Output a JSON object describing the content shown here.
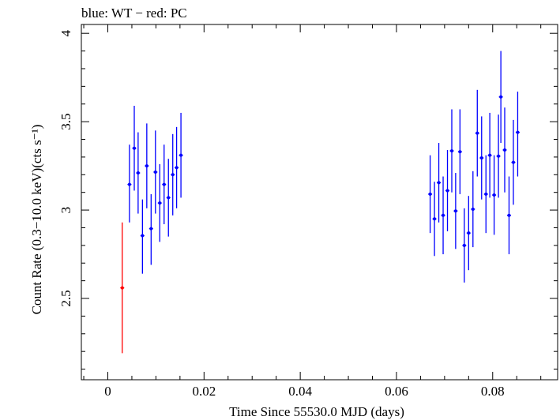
{
  "chart_data": {
    "type": "scatter",
    "title": "blue: WT − red: PC",
    "xlabel": "Time Since 55530.0 MJD (days)",
    "ylabel": "Count Rate (0.3−10.0 keV)(cts s⁻¹)",
    "xlim": [
      -0.0055,
      0.0935
    ],
    "ylim": [
      2.04,
      4.05
    ],
    "xticks": [
      0,
      0.02,
      0.04,
      0.06,
      0.08
    ],
    "xtick_labels": [
      "0",
      "0.02",
      "0.04",
      "0.06",
      "0.08"
    ],
    "yticks": [
      2.5,
      3,
      3.5,
      4
    ],
    "ytick_labels": [
      "2.5",
      "3",
      "3.5",
      "4"
    ],
    "series": [
      {
        "name": "WT",
        "color": "#0000ff",
        "points": [
          {
            "x": 0.0045,
            "y": 3.145,
            "ylo": 2.93,
            "yhi": 3.37
          },
          {
            "x": 0.0055,
            "y": 3.35,
            "ylo": 3.11,
            "yhi": 3.59
          },
          {
            "x": 0.0063,
            "y": 3.21,
            "ylo": 2.98,
            "yhi": 3.44
          },
          {
            "x": 0.0072,
            "y": 2.855,
            "ylo": 2.64,
            "yhi": 3.06
          },
          {
            "x": 0.0081,
            "y": 3.25,
            "ylo": 3.01,
            "yhi": 3.49
          },
          {
            "x": 0.009,
            "y": 2.895,
            "ylo": 2.69,
            "yhi": 3.09
          },
          {
            "x": 0.0099,
            "y": 3.215,
            "ylo": 2.98,
            "yhi": 3.45
          },
          {
            "x": 0.0108,
            "y": 3.04,
            "ylo": 2.82,
            "yhi": 3.26
          },
          {
            "x": 0.0117,
            "y": 3.145,
            "ylo": 2.92,
            "yhi": 3.37
          },
          {
            "x": 0.0126,
            "y": 3.07,
            "ylo": 2.85,
            "yhi": 3.29
          },
          {
            "x": 0.0135,
            "y": 3.2,
            "ylo": 2.97,
            "yhi": 3.43
          },
          {
            "x": 0.0143,
            "y": 3.24,
            "ylo": 3.01,
            "yhi": 3.47
          },
          {
            "x": 0.0152,
            "y": 3.31,
            "ylo": 3.07,
            "yhi": 3.55
          },
          {
            "x": 0.067,
            "y": 3.09,
            "ylo": 2.87,
            "yhi": 3.31
          },
          {
            "x": 0.0679,
            "y": 2.95,
            "ylo": 2.74,
            "yhi": 3.16
          },
          {
            "x": 0.0688,
            "y": 3.155,
            "ylo": 2.93,
            "yhi": 3.38
          },
          {
            "x": 0.0697,
            "y": 2.97,
            "ylo": 2.75,
            "yhi": 3.19
          },
          {
            "x": 0.0706,
            "y": 3.11,
            "ylo": 2.88,
            "yhi": 3.34
          },
          {
            "x": 0.0715,
            "y": 3.335,
            "ylo": 3.1,
            "yhi": 3.57
          },
          {
            "x": 0.0723,
            "y": 2.995,
            "ylo": 2.78,
            "yhi": 3.21
          },
          {
            "x": 0.0732,
            "y": 3.33,
            "ylo": 3.09,
            "yhi": 3.57
          },
          {
            "x": 0.0741,
            "y": 2.8,
            "ylo": 2.59,
            "yhi": 3.01
          },
          {
            "x": 0.075,
            "y": 2.87,
            "ylo": 2.66,
            "yhi": 3.08
          },
          {
            "x": 0.0759,
            "y": 3.005,
            "ylo": 2.79,
            "yhi": 3.22
          },
          {
            "x": 0.0768,
            "y": 3.435,
            "ylo": 3.19,
            "yhi": 3.68
          },
          {
            "x": 0.0777,
            "y": 3.295,
            "ylo": 3.06,
            "yhi": 3.53
          },
          {
            "x": 0.0786,
            "y": 3.09,
            "ylo": 2.87,
            "yhi": 3.31
          },
          {
            "x": 0.0794,
            "y": 3.31,
            "ylo": 3.07,
            "yhi": 3.55
          },
          {
            "x": 0.0803,
            "y": 3.085,
            "ylo": 2.86,
            "yhi": 3.31
          },
          {
            "x": 0.0812,
            "y": 3.305,
            "ylo": 3.07,
            "yhi": 3.54
          },
          {
            "x": 0.0817,
            "y": 3.64,
            "ylo": 3.38,
            "yhi": 3.9
          },
          {
            "x": 0.0825,
            "y": 3.34,
            "ylo": 3.1,
            "yhi": 3.58
          },
          {
            "x": 0.0834,
            "y": 2.97,
            "ylo": 2.75,
            "yhi": 3.19
          },
          {
            "x": 0.0843,
            "y": 3.27,
            "ylo": 3.03,
            "yhi": 3.51
          },
          {
            "x": 0.0852,
            "y": 3.44,
            "ylo": 3.19,
            "yhi": 3.67
          }
        ]
      },
      {
        "name": "PC",
        "color": "#ff0000",
        "points": [
          {
            "x": 0.003,
            "y": 2.56,
            "ylo": 2.19,
            "yhi": 2.93
          }
        ]
      }
    ]
  }
}
